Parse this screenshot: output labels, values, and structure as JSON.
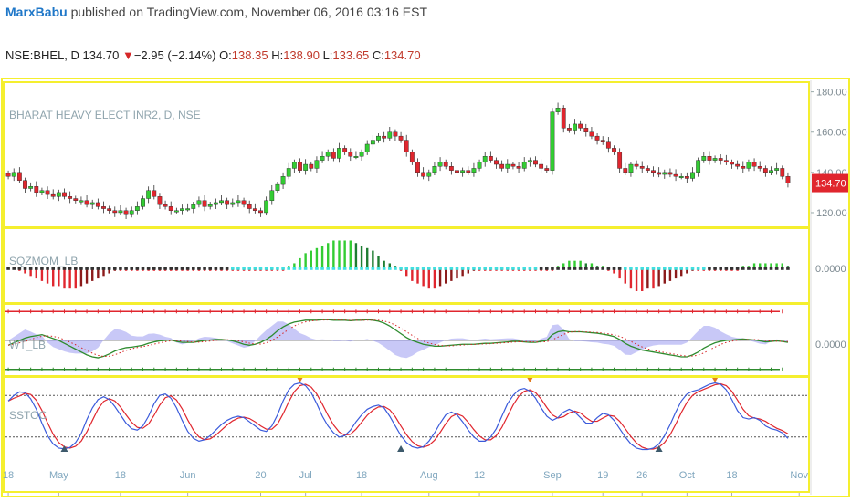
{
  "header": {
    "author": "MarxBabu",
    "published": " published on TradingView.com, November 06, 2016 03:16 EST"
  },
  "ticker": {
    "symbol": "NSE:BHEL, D",
    "last": "134.70",
    "arrow": "▼",
    "change": "−2.95 (−2.14%)",
    "o_label": "O:",
    "o_value": "138.35",
    "h_label": "H:",
    "h_value": "138.90",
    "l_label": "L:",
    "l_value": "133.65",
    "c_label": "C:",
    "c_value": "134.70"
  },
  "colors": {
    "border": "#f5ef2e",
    "up": "#33cc33",
    "down": "#e0262e",
    "price_tag": "#e0262e",
    "wt1": "#2e8b2e",
    "wt2": "#d62728",
    "stoch_k": "#3b5bdb",
    "stoch_d": "#e0262e",
    "cyan": "#40e0e0"
  },
  "chart_data": [
    {
      "type": "candlestick",
      "title": "BHARAT HEAVY ELECT INR2, D, NSE",
      "price_tag": "134.70",
      "ylim": [
        115,
        183
      ],
      "y_ticks": [
        {
          "value": 180,
          "label": "180.00"
        },
        {
          "value": 160,
          "label": "160.00"
        },
        {
          "value": 140,
          "label": "140.00"
        },
        {
          "value": 120,
          "label": "120.00"
        }
      ],
      "x_axis": [
        {
          "label": "18",
          "x": 0
        },
        {
          "label": "May",
          "x": 9
        },
        {
          "label": "18",
          "x": 20
        },
        {
          "label": "Jun",
          "x": 32
        },
        {
          "label": "20",
          "x": 45
        },
        {
          "label": "Jul",
          "x": 53
        },
        {
          "label": "18",
          "x": 63
        },
        {
          "label": "Aug",
          "x": 75
        },
        {
          "label": "12",
          "x": 84
        },
        {
          "label": "Sep",
          "x": 97
        },
        {
          "label": "19",
          "x": 106
        },
        {
          "label": "26",
          "x": 113
        },
        {
          "label": "Oct",
          "x": 121
        },
        {
          "label": "18",
          "x": 129
        },
        {
          "label": "Nov",
          "x": 141
        }
      ],
      "close": [
        138,
        140,
        136,
        132,
        133,
        130,
        131,
        129,
        128,
        130,
        128,
        127,
        126,
        126,
        124,
        125,
        123,
        122,
        121,
        120,
        121,
        119,
        121,
        123,
        127,
        131,
        128,
        124,
        123,
        121,
        121,
        122,
        122,
        124,
        126,
        123,
        124,
        125,
        126,
        124,
        125,
        126,
        124,
        122,
        121,
        120,
        126,
        131,
        134,
        138,
        142,
        145,
        141,
        144,
        142,
        146,
        148,
        150,
        147,
        152,
        150,
        148,
        148,
        150,
        154,
        156,
        158,
        157,
        160,
        158,
        156,
        150,
        145,
        140,
        138,
        140,
        143,
        145,
        143,
        141,
        140,
        141,
        140,
        142,
        145,
        148,
        146,
        144,
        142,
        144,
        143,
        142,
        145,
        146,
        144,
        142,
        141,
        170,
        172,
        162,
        161,
        164,
        162,
        160,
        158,
        156,
        155,
        152,
        150,
        142,
        140,
        144,
        143,
        142,
        141,
        140,
        139,
        140,
        139,
        138,
        138,
        137,
        140,
        146,
        148,
        146,
        147,
        146,
        145,
        144,
        143,
        142,
        145,
        143,
        142,
        140,
        141,
        142,
        138,
        134.7
      ]
    },
    {
      "type": "histogram",
      "title": "SQZMOM_LB",
      "zero_label": "0.0000",
      "ylim": [
        -14,
        14
      ],
      "values": [
        0,
        0,
        -1,
        -2,
        -3,
        -4,
        -5,
        -6,
        -7,
        -7,
        -8,
        -8,
        -8,
        -7,
        -6,
        -5,
        -4,
        -3,
        -2,
        -1,
        -1,
        -1,
        -1,
        -1,
        -1,
        -1,
        -1,
        -1,
        -1,
        -1,
        -1,
        -1,
        -1,
        -1,
        -1,
        -1,
        -1,
        -1,
        -1,
        -1,
        -1,
        -1,
        -1,
        -1,
        -1,
        -1,
        -1,
        -1,
        -1,
        -1,
        1,
        2,
        4,
        6,
        7,
        8,
        9,
        10,
        11,
        11,
        11,
        11,
        10,
        9,
        8,
        7,
        5,
        3,
        2,
        1,
        -1,
        -3,
        -5,
        -6,
        -7,
        -8,
        -8,
        -7,
        -6,
        -5,
        -4,
        -3,
        -2,
        -1,
        -1,
        -1,
        -1,
        -1,
        -1,
        -1,
        -1,
        -1,
        -1,
        -1,
        -1,
        -1,
        -1,
        -1,
        1,
        2,
        3,
        3,
        3,
        2,
        2,
        1,
        1,
        -1,
        -2,
        -4,
        -6,
        -8,
        -9,
        -9,
        -8,
        -8,
        -7,
        -6,
        -5,
        -4,
        -3,
        -2,
        -1,
        -1,
        -1,
        -1,
        -1,
        -1,
        -1,
        -1,
        -1,
        1,
        1,
        2,
        2,
        2,
        2,
        2,
        2,
        1
      ]
    },
    {
      "type": "line",
      "title": "WT_LB",
      "zero_label": "0.0000",
      "ylim": [
        -70,
        70
      ],
      "wt1": [
        -10,
        -5,
        0,
        5,
        8,
        10,
        12,
        8,
        4,
        0,
        -6,
        -12,
        -18,
        -24,
        -30,
        -34,
        -36,
        -33,
        -28,
        -22,
        -18,
        -15,
        -14,
        -12,
        -10,
        -6,
        -3,
        -1,
        0,
        1,
        -2,
        -4,
        -4,
        -4,
        -2,
        0,
        1,
        2,
        2,
        1,
        -1,
        -4,
        -8,
        -10,
        -8,
        -4,
        2,
        10,
        20,
        28,
        34,
        38,
        40,
        42,
        42,
        42,
        43,
        43,
        42,
        42,
        42,
        41,
        42,
        42,
        43,
        42,
        40,
        36,
        30,
        22,
        14,
        6,
        0,
        -4,
        -8,
        -10,
        -12,
        -12,
        -11,
        -10,
        -9,
        -8,
        -8,
        -8,
        -7,
        -6,
        -6,
        -5,
        -4,
        -3,
        -2,
        -2,
        -3,
        -4,
        -4,
        -2,
        0,
        12,
        18,
        20,
        18,
        18,
        18,
        17,
        16,
        15,
        13,
        11,
        8,
        2,
        -6,
        -12,
        -16,
        -20,
        -22,
        -24,
        -26,
        -28,
        -30,
        -32,
        -34,
        -34,
        -30,
        -24,
        -16,
        -10,
        -5,
        -2,
        0,
        1,
        2,
        3,
        2,
        1,
        -1,
        -3,
        -2,
        -1,
        -2,
        -4
      ]
    },
    {
      "type": "line",
      "title": "SSTOC",
      "ylim": [
        0,
        100
      ],
      "levels": [
        80,
        20
      ],
      "k": [
        72,
        80,
        85,
        84,
        75,
        60,
        40,
        22,
        10,
        4,
        3,
        5,
        12,
        25,
        45,
        62,
        74,
        78,
        74,
        64,
        52,
        40,
        32,
        30,
        36,
        50,
        68,
        80,
        82,
        76,
        62,
        44,
        28,
        18,
        14,
        16,
        22,
        30,
        38,
        44,
        48,
        50,
        48,
        42,
        36,
        30,
        28,
        36,
        52,
        72,
        88,
        96,
        98,
        94,
        84,
        68,
        50,
        36,
        26,
        20,
        22,
        30,
        42,
        52,
        60,
        64,
        66,
        62,
        50,
        36,
        22,
        12,
        6,
        4,
        6,
        14,
        26,
        40,
        52,
        56,
        52,
        42,
        30,
        20,
        14,
        14,
        20,
        32,
        50,
        68,
        80,
        88,
        90,
        86,
        76,
        62,
        50,
        44,
        48,
        56,
        60,
        56,
        48,
        40,
        40,
        48,
        54,
        52,
        44,
        32,
        20,
        10,
        4,
        2,
        2,
        4,
        10,
        22,
        38,
        56,
        72,
        82,
        86,
        88,
        92,
        96,
        98,
        96,
        88,
        74,
        58,
        48,
        46,
        48,
        44,
        36,
        32,
        30,
        26,
        18
      ]
    }
  ]
}
